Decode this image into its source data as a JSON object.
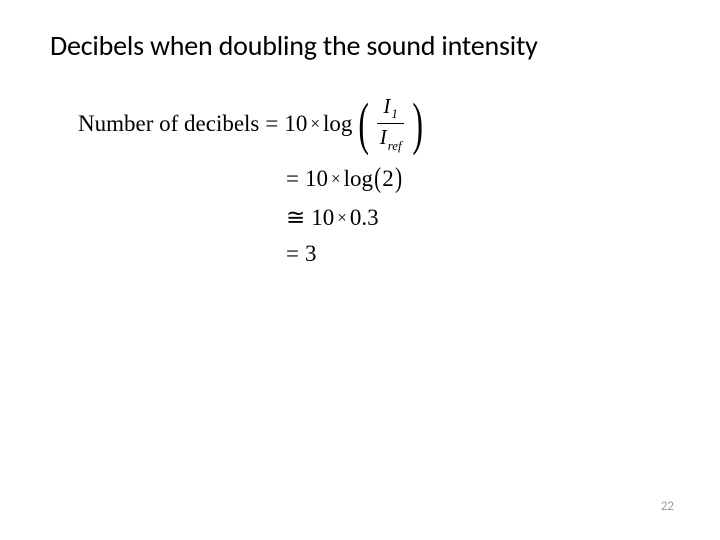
{
  "title": "Decibels when doubling the sound intensity",
  "equation": {
    "label": "Number of decibels",
    "line1_prefix": "10",
    "line1_log": "log",
    "frac_num_var": "I",
    "frac_num_sub": "1",
    "frac_den_var": "I",
    "frac_den_sub": "ref",
    "line2_prefix": "10",
    "line2_log": "log",
    "line2_arg": "2",
    "line3_prefix": "10",
    "line3_val": "0.3",
    "line4_val": "3"
  },
  "symbols": {
    "equals": "=",
    "times": "×",
    "approx": "≅"
  },
  "page_number": "22",
  "colors": {
    "background": "#ffffff",
    "text": "#000000",
    "page_num": "#999999"
  }
}
